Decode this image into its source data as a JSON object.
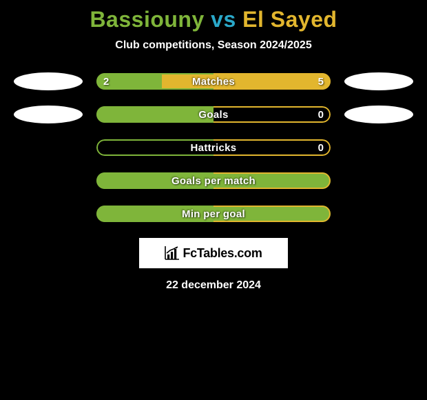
{
  "header": {
    "player1": "Bassiouny",
    "vs": " vs ",
    "player2": "El Sayed",
    "title_color_p1": "#7fb53a",
    "title_color_vs": "#2aa8c9",
    "title_color_p2": "#e2b62e",
    "subtitle": "Club competitions, Season 2024/2025"
  },
  "colors": {
    "left_fill": "#7fb53a",
    "right_fill": "#e2b62e",
    "bar_bg": "#000000",
    "border_left": "#7fb53a",
    "border_right": "#e2b62e",
    "background": "#000000"
  },
  "stats": [
    {
      "label": "Matches",
      "left_value": "2",
      "right_value": "5",
      "left_pct": 28,
      "right_pct": 72,
      "show_flags": true,
      "show_values": true
    },
    {
      "label": "Goals",
      "left_value": "",
      "right_value": "0",
      "left_pct": 50,
      "right_pct": 0,
      "show_flags": true,
      "show_values": true
    },
    {
      "label": "Hattricks",
      "left_value": "",
      "right_value": "0",
      "left_pct": 0,
      "right_pct": 0,
      "show_flags": false,
      "show_values": true
    },
    {
      "label": "Goals per match",
      "left_value": "",
      "right_value": "",
      "left_pct": 100,
      "right_pct": 0,
      "show_flags": false,
      "show_values": false
    },
    {
      "label": "Min per goal",
      "left_value": "",
      "right_value": "",
      "left_pct": 100,
      "right_pct": 0,
      "show_flags": false,
      "show_values": false
    }
  ],
  "logo": {
    "text": "FcTables.com"
  },
  "footer": {
    "date": "22 december 2024"
  }
}
